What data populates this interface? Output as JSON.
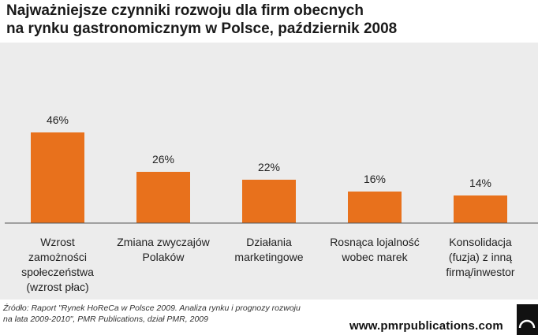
{
  "title": {
    "line1": "Najważniejsze czynniki rozwoju dla firm obecnych",
    "line2": "na rynku gastronomicznym w Polsce, październik 2008"
  },
  "chart_data": {
    "type": "bar",
    "categories": [
      [
        "Wzrost",
        "zamożności",
        "społeczeństwa",
        "(wzrost płac)"
      ],
      [
        "Zmiana zwyczajów",
        "Polaków"
      ],
      [
        "Działania",
        "marketingowe"
      ],
      [
        "Rosnąca lojalność",
        "wobec marek"
      ],
      [
        "Konsolidacja",
        "(fuzja) z inną",
        "firmą/inwestor"
      ]
    ],
    "values": [
      46,
      26,
      22,
      16,
      14
    ],
    "value_labels": [
      "46%",
      "26%",
      "22%",
      "16%",
      "14%"
    ],
    "ylim": [
      0,
      50
    ],
    "bar_color": "#e8711c",
    "grid": false
  },
  "source": {
    "line1": "Źródło: Raport \"Rynek HoReCa w Polsce 2009. Analiza rynku i prognozy rozwoju",
    "line2": "na lata 2009-2010\", PMR Publications, dział PMR, 2009"
  },
  "brand": {
    "url": "www.pmrpublications.com",
    "logo_icon": "pmr-logo-icon"
  }
}
